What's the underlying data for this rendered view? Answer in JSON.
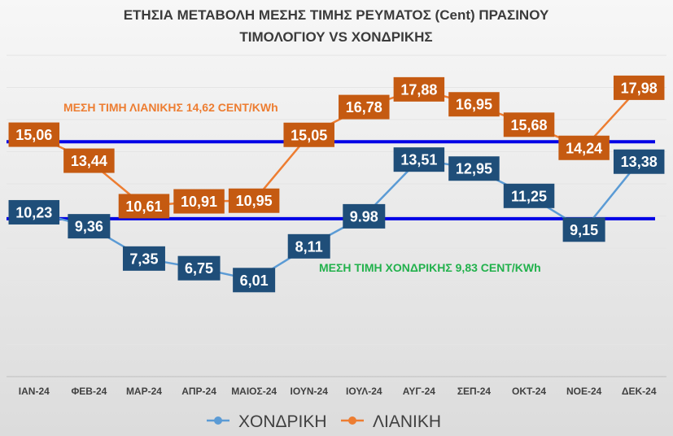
{
  "chart_data": {
    "type": "line",
    "title_line1": "ΕΤΗΣΙΑ ΜΕΤΑΒΟΛΗ ΜΕΣΗΣ ΤΙΜΗΣ ΡΕΥΜΑΤΟΣ (Cent) ΠΡΑΣΙΝΟΥ",
    "title_line2": "ΤΙΜΟΛΟΓΙΟΥ VS ΧΟΝΔΡΙΚΗΣ",
    "categories": [
      "ΙΑΝ-24",
      "ΦΕΒ-24",
      "ΜΑΡ-24",
      "ΑΠΡ-24",
      "ΜΑΙΟΣ-24",
      "ΙΟΥΝ-24",
      "ΙΟΥΛ-24",
      "ΑΥΓ-24",
      "ΣΕΠ-24",
      "ΟΚΤ-24",
      "ΝΟΕ-24",
      "ΔΕΚ-24"
    ],
    "series": [
      {
        "name": "ΧΟΝΔΡΙΚΗ",
        "color": "#5b9bd5",
        "label_bg": "#1f4e79",
        "values": [
          10.23,
          9.36,
          7.35,
          6.75,
          6.01,
          8.11,
          9.98,
          13.51,
          12.95,
          11.25,
          9.15,
          13.38
        ],
        "labels": [
          "10,23",
          "9,36",
          "7,35",
          "6,75",
          "6,01",
          "8,11",
          "9.98",
          "13,51",
          "12,95",
          "11,25",
          "9,15",
          "13,38"
        ]
      },
      {
        "name": "ΛΙΑΝΙΚΗ",
        "color": "#ed7d31",
        "label_bg": "#c55a11",
        "values": [
          15.06,
          13.44,
          10.61,
          10.91,
          10.95,
          15.05,
          16.78,
          17.88,
          16.95,
          15.68,
          14.24,
          17.98
        ],
        "labels": [
          "15,06",
          "13,44",
          "10,61",
          "10,91",
          "10,95",
          "15,05",
          "16,78",
          "17,88",
          "16,95",
          "15,68",
          "14,24",
          "17,98"
        ]
      }
    ],
    "reference_lines": [
      {
        "value": 14.62,
        "color": "#0000e6",
        "label": "ΜΕΣΗ ΤΙΜΗ ΛΙΑΝΙΚΗΣ 14,62 CENT/KWh",
        "label_color": "#ed7d31"
      },
      {
        "value": 9.83,
        "color": "#0000e6",
        "label": "ΜΕΣΗ ΤΙΜΗ ΧΟΝΔΡΙΚΗΣ 9,83 CENT/KWh",
        "label_color": "#22b14c"
      }
    ],
    "ylim": [
      0,
      20
    ],
    "grid": true,
    "legend_position": "bottom"
  }
}
